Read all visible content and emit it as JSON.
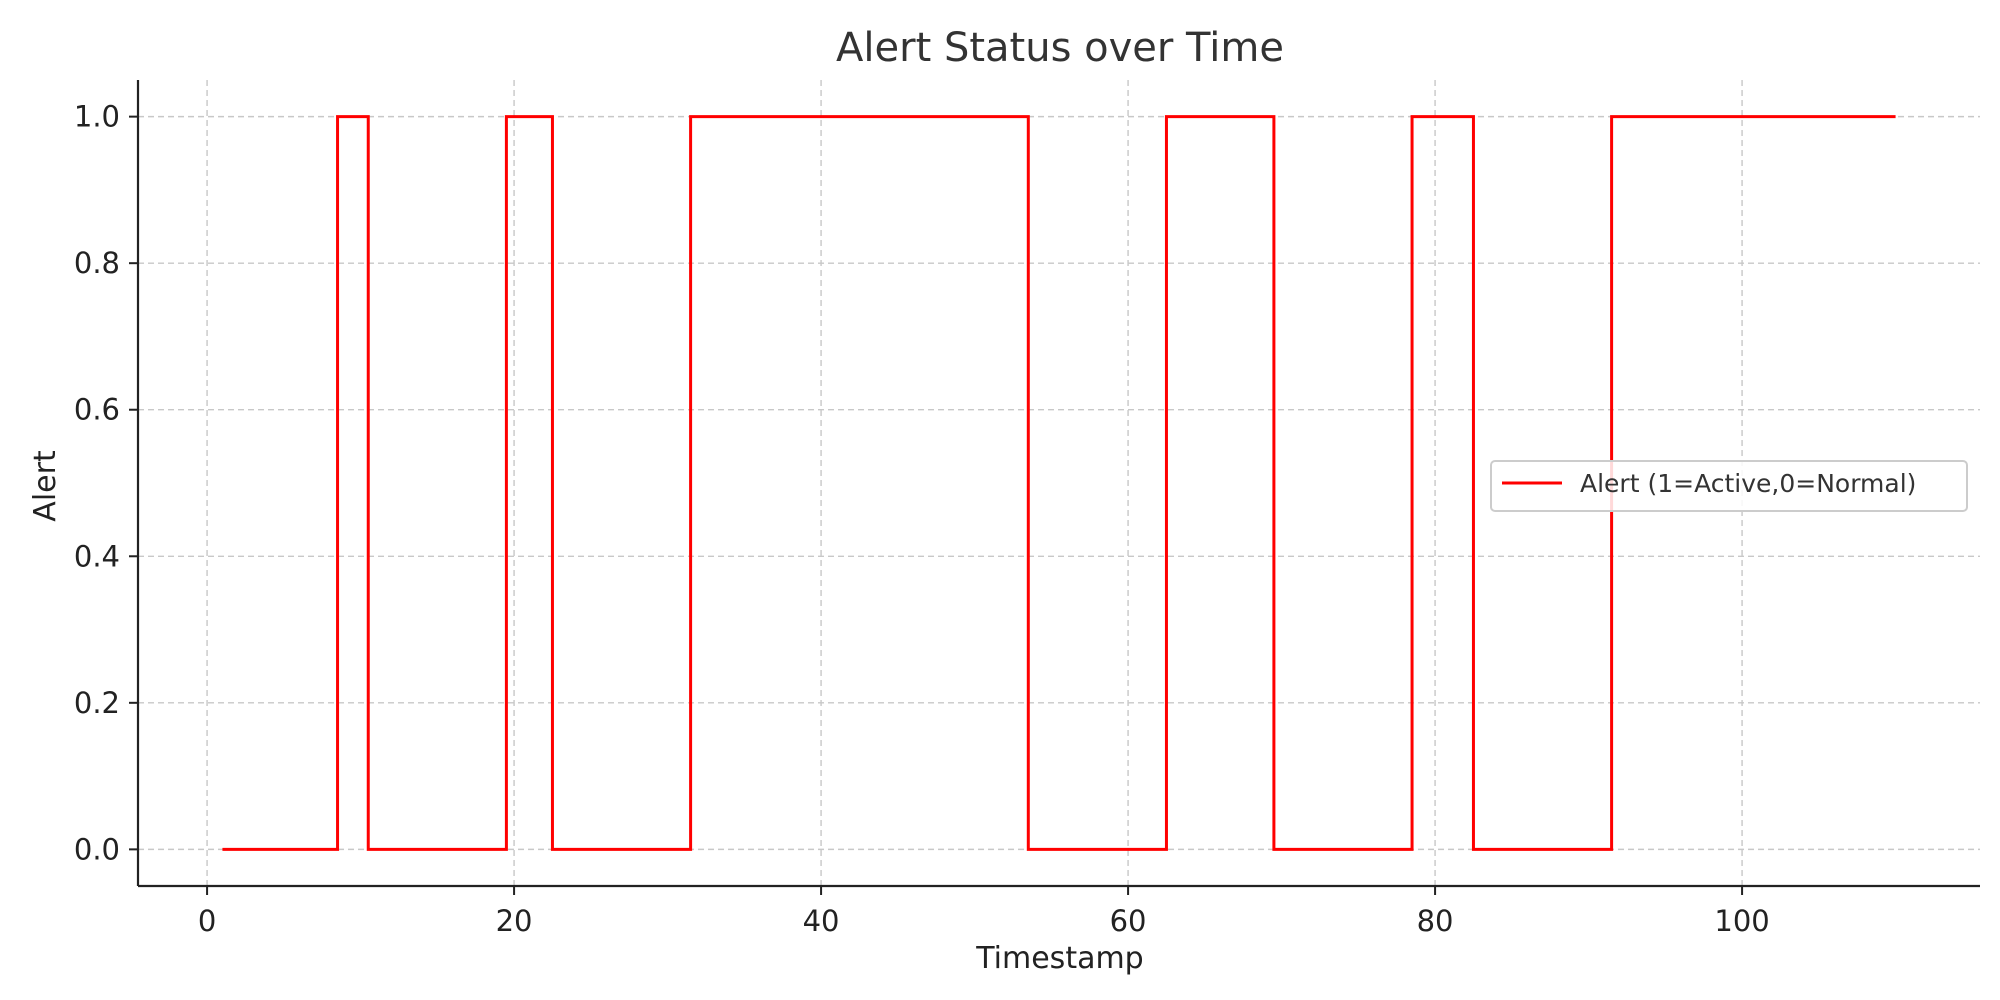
{
  "chart_data": {
    "type": "line",
    "title": "Alert Status over Time",
    "xlabel": "Timestamp",
    "ylabel": "Alert",
    "xlim": [
      -4.5,
      115.5
    ],
    "ylim": [
      -0.05,
      1.05
    ],
    "x_ticks": [
      0,
      20,
      40,
      60,
      80,
      100
    ],
    "x_tick_labels": [
      "0",
      "20",
      "40",
      "60",
      "80",
      "100"
    ],
    "y_ticks": [
      0.0,
      0.2,
      0.4,
      0.6,
      0.8,
      1.0
    ],
    "y_tick_labels": [
      "0.0",
      "0.2",
      "0.4",
      "0.6",
      "0.8",
      "1.0"
    ],
    "grid": true,
    "legend_position": "center-right",
    "step_style": "mid",
    "series": [
      {
        "name": "Alert (1=Active,0=Normal)",
        "color": "#ff0000",
        "x": [
          1,
          2,
          3,
          4,
          5,
          6,
          7,
          8,
          9,
          10,
          11,
          12,
          13,
          14,
          15,
          16,
          17,
          18,
          19,
          20,
          21,
          22,
          23,
          24,
          25,
          26,
          27,
          28,
          29,
          30,
          31,
          32,
          33,
          34,
          35,
          36,
          37,
          38,
          39,
          40,
          41,
          42,
          43,
          44,
          45,
          46,
          47,
          48,
          49,
          50,
          51,
          52,
          53,
          54,
          55,
          56,
          57,
          58,
          59,
          60,
          61,
          62,
          63,
          64,
          65,
          66,
          67,
          68,
          69,
          70,
          71,
          72,
          73,
          74,
          75,
          76,
          77,
          78,
          79,
          80,
          81,
          82,
          83,
          84,
          85,
          86,
          87,
          88,
          89,
          90,
          91,
          92,
          93,
          94,
          95,
          96,
          97,
          98,
          99,
          100,
          101,
          102,
          103,
          104,
          105,
          106,
          107,
          108,
          109,
          110
        ],
        "y": [
          0,
          0,
          0,
          0,
          0,
          0,
          0,
          0,
          1,
          1,
          0,
          0,
          0,
          0,
          0,
          0,
          0,
          0,
          0,
          1,
          1,
          1,
          0,
          0,
          0,
          0,
          0,
          0,
          0,
          0,
          0,
          1,
          1,
          1,
          1,
          1,
          1,
          1,
          1,
          1,
          1,
          1,
          1,
          1,
          1,
          1,
          1,
          1,
          1,
          1,
          1,
          1,
          1,
          0,
          0,
          0,
          0,
          0,
          0,
          0,
          0,
          0,
          1,
          1,
          1,
          1,
          1,
          1,
          1,
          0,
          0,
          0,
          0,
          0,
          0,
          0,
          0,
          0,
          1,
          1,
          1,
          1,
          0,
          0,
          0,
          0,
          0,
          0,
          0,
          0,
          0,
          1,
          1,
          1,
          1,
          1,
          1,
          1,
          1,
          1,
          1,
          1,
          1,
          1,
          1,
          1,
          1,
          1,
          1,
          1
        ]
      }
    ]
  }
}
